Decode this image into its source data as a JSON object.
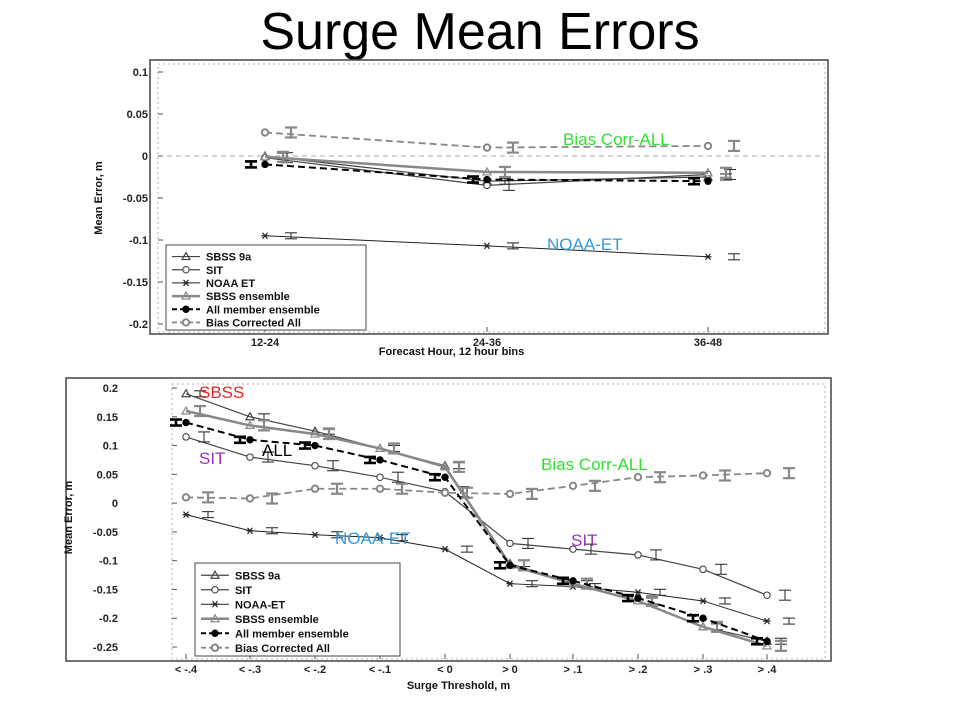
{
  "title": "Surge Mean Errors",
  "chart_data": [
    {
      "type": "line",
      "xlabel": "Forecast Hour, 12 hour bins",
      "ylabel": "Mean Error, m",
      "categories": [
        "12-24",
        "24-36",
        "36-48"
      ],
      "ylim": [
        -0.2,
        0.1
      ],
      "yticks": [
        0.1,
        0.05,
        0,
        -0.05,
        -0.1,
        -0.15,
        -0.2
      ],
      "yticklabels": [
        "0.1",
        "0.05",
        "0",
        "-0.05",
        "-0.1",
        "-0.15",
        "-0.2"
      ],
      "grid": false,
      "zero_line": true,
      "legend_position": "lower-left",
      "series": [
        {
          "name": "SBSS 9a",
          "values": [
            0.0,
            -0.03,
            -0.025
          ],
          "color": "#444444",
          "marker": "triangle",
          "dash": false,
          "width": 1.2
        },
        {
          "name": "SIT",
          "values": [
            -0.002,
            -0.035,
            -0.022
          ],
          "color": "#444444",
          "marker": "circle-open",
          "dash": false,
          "width": 1.2
        },
        {
          "name": "NOAA ET",
          "values": [
            -0.095,
            -0.107,
            -0.12
          ],
          "color": "#222222",
          "marker": "star",
          "dash": false,
          "width": 1.0
        },
        {
          "name": "SBSS ensemble",
          "values": [
            -0.001,
            -0.019,
            -0.02
          ],
          "color": "#888888",
          "marker": "triangle",
          "dash": false,
          "width": 2.5
        },
        {
          "name": "All member ensemble",
          "values": [
            -0.01,
            -0.028,
            -0.03
          ],
          "color": "#000000",
          "marker": "dot",
          "dash": true,
          "width": 2.0
        },
        {
          "name": "Bias Corrected All",
          "values": [
            0.028,
            0.01,
            0.012
          ],
          "color": "#888888",
          "marker": "circle-gray",
          "dash": true,
          "width": 1.8
        }
      ],
      "annotations": [
        {
          "text": "Bias Corr-ALL",
          "color": "#33dd33"
        },
        {
          "text": "NOAA-ET",
          "color": "#3399dd"
        }
      ]
    },
    {
      "type": "line",
      "xlabel": "Surge Threshold, m",
      "ylabel": "Mean Error, m",
      "categories": [
        "< -.4",
        "< -.3",
        "< -.2",
        "< -.1",
        "< 0",
        "> 0",
        "> .1",
        "> .2",
        "> .3",
        "> .4"
      ],
      "ylim": [
        -0.25,
        0.2
      ],
      "yticks": [
        0.2,
        0.15,
        0.1,
        0.05,
        0,
        -0.05,
        -0.1,
        -0.15,
        -0.2,
        -0.25
      ],
      "yticklabels": [
        "0.2",
        "0.15",
        "0.1",
        "0.05",
        "0",
        "-0.05",
        "-0.1",
        "-0.15",
        "-0.2",
        "-0.25"
      ],
      "grid": false,
      "legend_position": "lower-left",
      "series": [
        {
          "name": "SBSS 9a",
          "values": [
            0.19,
            0.15,
            0.125,
            0.095,
            0.065,
            -0.105,
            -0.14,
            -0.17,
            -0.215,
            -0.24
          ],
          "color": "#444444",
          "marker": "triangle",
          "dash": false,
          "width": 1.2
        },
        {
          "name": "SIT",
          "values": [
            0.115,
            0.08,
            0.065,
            0.045,
            0.02,
            -0.07,
            -0.08,
            -0.09,
            -0.115,
            -0.16
          ],
          "color": "#444444",
          "marker": "circle-open",
          "dash": false,
          "width": 1.2
        },
        {
          "name": "NOAA-ET",
          "values": [
            -0.02,
            -0.048,
            -0.055,
            -0.06,
            -0.08,
            -0.14,
            -0.145,
            -0.155,
            -0.17,
            -0.205
          ],
          "color": "#222222",
          "marker": "star",
          "dash": false,
          "width": 1.0
        },
        {
          "name": "SBSS ensemble",
          "values": [
            0.16,
            0.135,
            0.12,
            0.095,
            0.063,
            -0.108,
            -0.14,
            -0.17,
            -0.215,
            -0.248
          ],
          "color": "#888888",
          "marker": "triangle",
          "dash": false,
          "width": 2.5
        },
        {
          "name": "All member ensemble",
          "values": [
            0.14,
            0.11,
            0.1,
            0.075,
            0.045,
            -0.108,
            -0.135,
            -0.165,
            -0.2,
            -0.24
          ],
          "color": "#000000",
          "marker": "dot",
          "dash": true,
          "width": 2.0
        },
        {
          "name": "Bias Corrected All",
          "values": [
            0.01,
            0.008,
            0.025,
            0.025,
            0.018,
            0.016,
            0.03,
            0.045,
            0.048,
            0.052
          ],
          "color": "#888888",
          "marker": "circle-gray",
          "dash": true,
          "width": 1.8
        }
      ],
      "annotations": [
        {
          "text": "SBSS",
          "color": "#ee2222"
        },
        {
          "text": "SIT",
          "color": "#9933bb"
        },
        {
          "text": "ALL",
          "color": "#000000"
        },
        {
          "text": "Bias Corr-ALL",
          "color": "#33dd33"
        },
        {
          "text": "NOAA-ET",
          "color": "#3399dd"
        },
        {
          "text": "SIT",
          "color": "#9933bb"
        }
      ]
    }
  ]
}
